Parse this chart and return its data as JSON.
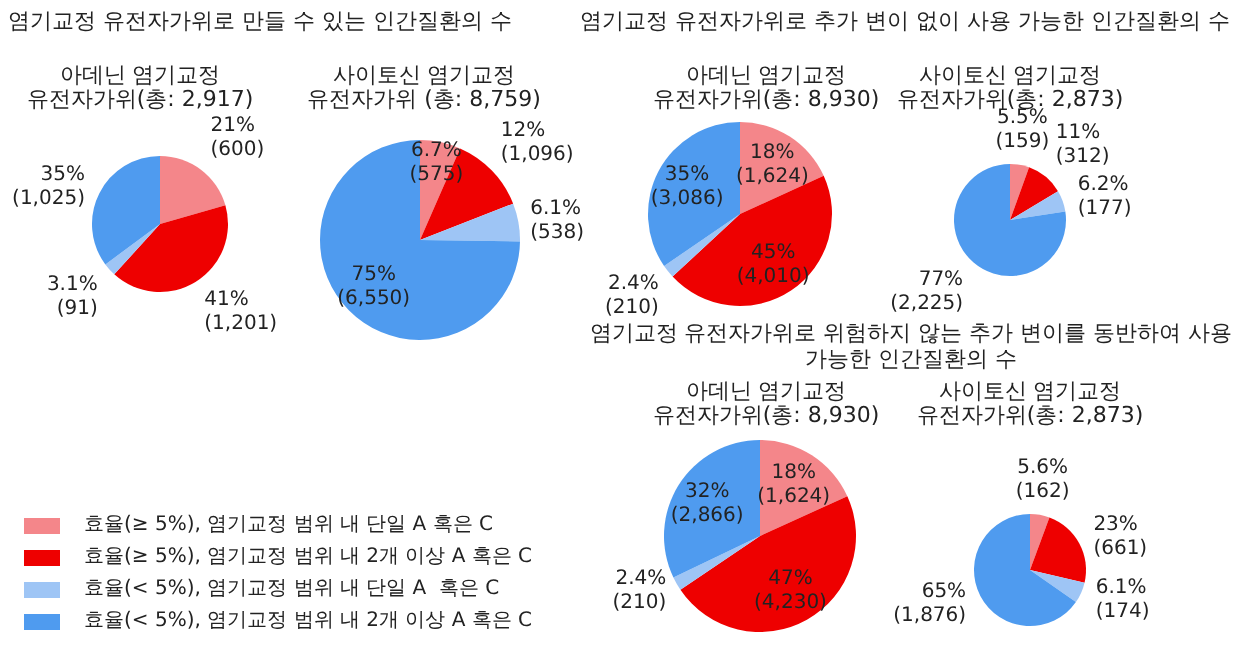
{
  "chart_data": [
    {
      "type": "pie",
      "title": "염기교정 유전자가위로 만들 수 있는 인간질환의 수",
      "subtitle": "아데닌 염기교정 유전자가위(총: 2,917)",
      "values": [
        600,
        1201,
        91,
        1025
      ],
      "colors": [
        "#f4868a",
        "#ee0000",
        "#9ec5f5",
        "#4f9bef"
      ],
      "value_labels": [
        "21%\n(600)",
        "41%\n(1,201)",
        "3.1%\n(91)",
        "35%\n(1,025)"
      ]
    },
    {
      "type": "pie",
      "subtitle": "사이토신 염기교정 유전자가위 (총: 8,759)",
      "values": [
        575,
        1096,
        538,
        6550
      ],
      "colors": [
        "#f4868a",
        "#ee0000",
        "#9ec5f5",
        "#4f9bef"
      ],
      "value_labels": [
        "6.7%\n(575)",
        "12%\n(1,096)",
        "6.1%\n(538)",
        "75%\n(6,550)"
      ]
    },
    {
      "type": "pie",
      "title": "염기교정 유전자가위로 추가 변이 없이 사용 가능한 인간질환의 수",
      "subtitle": "아데닌 염기교정 유전자가위(총: 8,930)",
      "values": [
        1624,
        4010,
        210,
        3086
      ],
      "colors": [
        "#f4868a",
        "#ee0000",
        "#9ec5f5",
        "#4f9bef"
      ],
      "value_labels": [
        "18%\n(1,624)",
        "45%\n(4,010)",
        "2.4%\n(210)",
        "35%\n(3,086)"
      ]
    },
    {
      "type": "pie",
      "subtitle": "사이토신 염기교정 유전자가위(총: 2,873)",
      "values": [
        159,
        312,
        177,
        2225
      ],
      "colors": [
        "#f4868a",
        "#ee0000",
        "#9ec5f5",
        "#4f9bef"
      ],
      "value_labels": [
        "5.5%\n(159)",
        "11%\n(312)",
        "6.2%\n(177)",
        "77%\n(2,225)"
      ]
    },
    {
      "type": "pie",
      "title": "염기교정 유전자가위로 위험하지 않는 추가 변이를 동반하여 사용 가능한 인간질환의 수",
      "subtitle": "아데닌 염기교정 유전자가위(총: 8,930)",
      "categories": [
        "효율(≥ 5%), 염기교정 범위 내 단일 A 혹은 C",
        "효율(≥ 5%), 염기교정 범위 내 2개 이상 A 혹은 C",
        "효율(< 5%), 염기교정 범위 내 단일 A  혹은 C",
        "효율(< 5%), 염기교정 범위 내 2개 이상 A 혹은 C"
      ],
      "values": [
        1624,
        4230,
        210,
        2866
      ],
      "colors": [
        "#f4868a",
        "#ee0000",
        "#9ec5f5",
        "#4f9bef"
      ],
      "value_labels": [
        "18%\n(1,624)",
        "47%\n(4,230)",
        "2.4%\n(210)",
        "32%\n(2,866)"
      ],
      "legend": "left"
    },
    {
      "type": "pie",
      "subtitle": "사이토신 염기교정 유전자가위(총: 2,873)",
      "values": [
        162,
        661,
        174,
        1876
      ],
      "colors": [
        "#f4868a",
        "#ee0000",
        "#9ec5f5",
        "#4f9bef"
      ],
      "value_labels": [
        "5.6%\n(162)",
        "23%\n(661)",
        "6.1%\n(174)",
        "65%\n(1,876)"
      ]
    }
  ]
}
